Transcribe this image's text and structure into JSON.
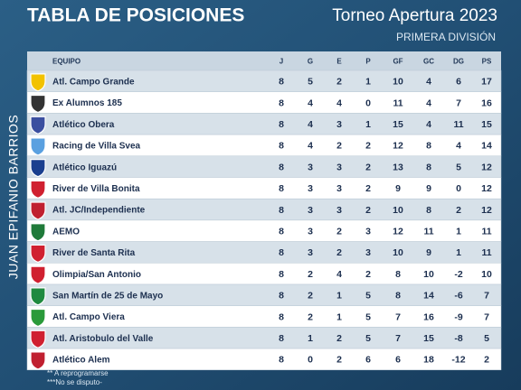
{
  "header": {
    "title": "TABLA DE POSICIONES",
    "tournament": "Torneo Apertura 2023",
    "division": "PRIMERA DIVISIÓN"
  },
  "side_credit": "JUAN EPIFANIO BARRIOS",
  "table": {
    "columns": [
      "EQUIPO",
      "J",
      "G",
      "E",
      "P",
      "GF",
      "GC",
      "DG",
      "PS"
    ],
    "rows": [
      [
        "Atl. Campo Grande",
        8,
        5,
        2,
        1,
        10,
        4,
        6,
        17
      ],
      [
        "Ex Alumnos 185",
        8,
        4,
        4,
        0,
        11,
        4,
        7,
        16
      ],
      [
        "Atlético Obera",
        8,
        4,
        3,
        1,
        15,
        4,
        11,
        15
      ],
      [
        "Racing de Villa Svea",
        8,
        4,
        2,
        2,
        12,
        8,
        4,
        14
      ],
      [
        "Atlético Iguazú",
        8,
        3,
        3,
        2,
        13,
        8,
        5,
        12
      ],
      [
        "River de Villa Bonita",
        8,
        3,
        3,
        2,
        9,
        9,
        0,
        12
      ],
      [
        "Atl. JC/Independiente",
        8,
        3,
        3,
        2,
        10,
        8,
        2,
        12
      ],
      [
        "AEMO",
        8,
        3,
        2,
        3,
        12,
        11,
        1,
        11
      ],
      [
        "River de Santa Rita",
        8,
        3,
        2,
        3,
        10,
        9,
        1,
        11
      ],
      [
        "Olimpia/San Antonio",
        8,
        2,
        4,
        2,
        8,
        10,
        -2,
        10
      ],
      [
        "San Martín de 25 de Mayo",
        8,
        2,
        1,
        5,
        8,
        14,
        -6,
        7
      ],
      [
        "Atl. Campo Viera",
        8,
        2,
        1,
        5,
        7,
        16,
        -9,
        7
      ],
      [
        "Atl. Aristobulo del Valle",
        8,
        1,
        2,
        5,
        7,
        15,
        -8,
        5
      ],
      [
        "Atlético Alem",
        8,
        0,
        2,
        6,
        6,
        18,
        -12,
        2
      ]
    ]
  },
  "footnotes": [
    "** A reprogramarse",
    "***No se disputo-"
  ]
}
